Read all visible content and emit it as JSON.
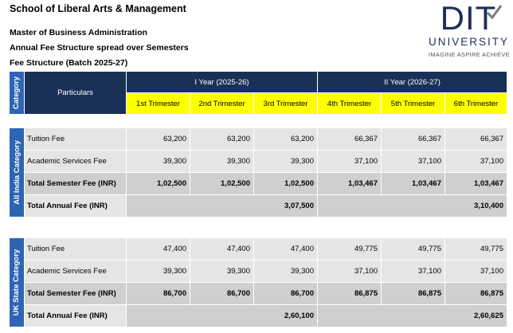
{
  "header": {
    "school": "School of Liberal Arts & Management",
    "program": "Master of Business Administration",
    "subtitle": "Annual Fee Structure spread over Semesters",
    "batch": "Fee Structure (Batch 2025-27)"
  },
  "logo": {
    "mark": "DIT",
    "word": "UNIVERSITY",
    "tagline": "IMAGINE  ASPIRE  ACHIEVE",
    "colors": {
      "text": "#1f2f5c",
      "tick": "#7a7a7a"
    }
  },
  "table_head": {
    "category": "Category",
    "particulars": "Particulars",
    "year1": "I Year (2025-26)",
    "year2": "II Year (2026-27)",
    "trimesters": [
      "1st Trimester",
      "2nd Trimester",
      "3rd Trimester",
      "4th Trimester",
      "5th Trimester",
      "6th Trimester"
    ]
  },
  "sections": [
    {
      "category": "All India Category",
      "rows": [
        {
          "label": "Tuition Fee",
          "values": [
            "63,200",
            "63,200",
            "63,200",
            "66,367",
            "66,367",
            "66,367"
          ]
        },
        {
          "label": "Academic Services Fee",
          "values": [
            "39,300",
            "39,300",
            "39,300",
            "37,100",
            "37,100",
            "37,100"
          ]
        },
        {
          "label": "Total Semester Fee (INR)",
          "values": [
            "1,02,500",
            "1,02,500",
            "1,02,500",
            "1,03,467",
            "1,03,467",
            "1,03,467"
          ]
        }
      ],
      "annual": {
        "label": "Total Annual Fee (INR)",
        "year1": "3,07,500",
        "year2": "3,10,400"
      }
    },
    {
      "category": "UK State Category",
      "rows": [
        {
          "label": "Tuition Fee",
          "values": [
            "47,400",
            "47,400",
            "47,400",
            "49,775",
            "49,775",
            "49,775"
          ]
        },
        {
          "label": "Academic Services Fee",
          "values": [
            "39,300",
            "39,300",
            "39,300",
            "37,100",
            "37,100",
            "37,100"
          ]
        },
        {
          "label": "Total Semester Fee (INR)",
          "values": [
            "86,700",
            "86,700",
            "86,700",
            "86,875",
            "86,875",
            "86,875"
          ]
        }
      ],
      "annual": {
        "label": "Total Annual Fee (INR)",
        "year1": "2,60,100",
        "year2": "2,60,625"
      }
    }
  ],
  "colors": {
    "header_blue": "#1a3157",
    "side_blue": "#2e64b4",
    "yellow": "#ffff00",
    "cell_grey": "#e5e5e5",
    "total_grey": "#cfcfcf"
  }
}
